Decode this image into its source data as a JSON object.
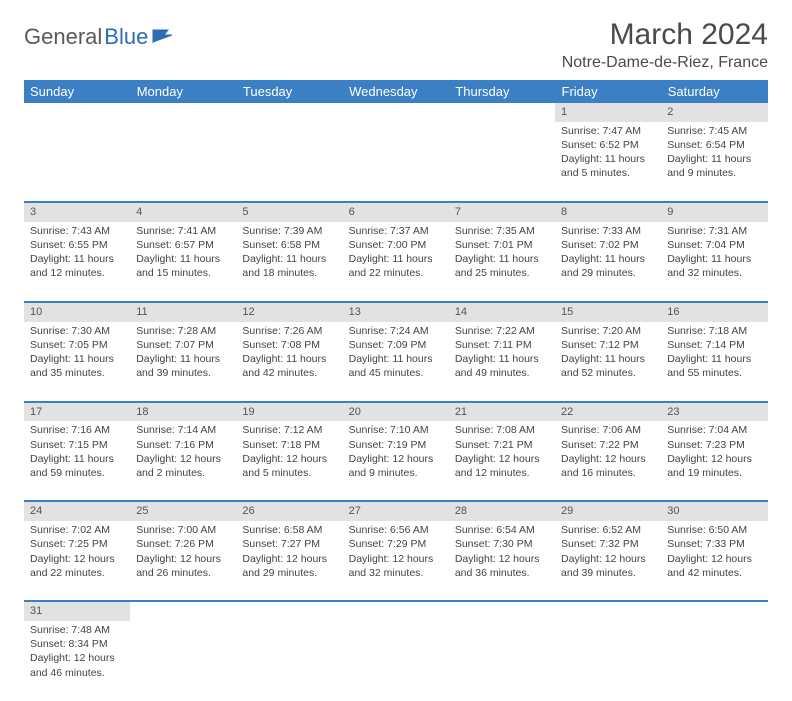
{
  "logo": {
    "text1": "General",
    "text2": "Blue"
  },
  "title": "March 2024",
  "location": "Notre-Dame-de-Riez, France",
  "colors": {
    "header_bg": "#3b7fc4",
    "header_text": "#ffffff",
    "daynum_bg": "#e2e2e2",
    "row_border": "#3b7fc4",
    "body_text": "#444444",
    "logo_gray": "#5a5a5a",
    "logo_blue": "#2a6db5"
  },
  "weekday_labels": [
    "Sunday",
    "Monday",
    "Tuesday",
    "Wednesday",
    "Thursday",
    "Friday",
    "Saturday"
  ],
  "weeks": [
    {
      "nums": [
        "",
        "",
        "",
        "",
        "",
        "1",
        "2"
      ],
      "cells": [
        null,
        null,
        null,
        null,
        null,
        {
          "sunrise": "Sunrise: 7:47 AM",
          "sunset": "Sunset: 6:52 PM",
          "day1": "Daylight: 11 hours",
          "day2": "and 5 minutes."
        },
        {
          "sunrise": "Sunrise: 7:45 AM",
          "sunset": "Sunset: 6:54 PM",
          "day1": "Daylight: 11 hours",
          "day2": "and 9 minutes."
        }
      ]
    },
    {
      "nums": [
        "3",
        "4",
        "5",
        "6",
        "7",
        "8",
        "9"
      ],
      "cells": [
        {
          "sunrise": "Sunrise: 7:43 AM",
          "sunset": "Sunset: 6:55 PM",
          "day1": "Daylight: 11 hours",
          "day2": "and 12 minutes."
        },
        {
          "sunrise": "Sunrise: 7:41 AM",
          "sunset": "Sunset: 6:57 PM",
          "day1": "Daylight: 11 hours",
          "day2": "and 15 minutes."
        },
        {
          "sunrise": "Sunrise: 7:39 AM",
          "sunset": "Sunset: 6:58 PM",
          "day1": "Daylight: 11 hours",
          "day2": "and 18 minutes."
        },
        {
          "sunrise": "Sunrise: 7:37 AM",
          "sunset": "Sunset: 7:00 PM",
          "day1": "Daylight: 11 hours",
          "day2": "and 22 minutes."
        },
        {
          "sunrise": "Sunrise: 7:35 AM",
          "sunset": "Sunset: 7:01 PM",
          "day1": "Daylight: 11 hours",
          "day2": "and 25 minutes."
        },
        {
          "sunrise": "Sunrise: 7:33 AM",
          "sunset": "Sunset: 7:02 PM",
          "day1": "Daylight: 11 hours",
          "day2": "and 29 minutes."
        },
        {
          "sunrise": "Sunrise: 7:31 AM",
          "sunset": "Sunset: 7:04 PM",
          "day1": "Daylight: 11 hours",
          "day2": "and 32 minutes."
        }
      ]
    },
    {
      "nums": [
        "10",
        "11",
        "12",
        "13",
        "14",
        "15",
        "16"
      ],
      "cells": [
        {
          "sunrise": "Sunrise: 7:30 AM",
          "sunset": "Sunset: 7:05 PM",
          "day1": "Daylight: 11 hours",
          "day2": "and 35 minutes."
        },
        {
          "sunrise": "Sunrise: 7:28 AM",
          "sunset": "Sunset: 7:07 PM",
          "day1": "Daylight: 11 hours",
          "day2": "and 39 minutes."
        },
        {
          "sunrise": "Sunrise: 7:26 AM",
          "sunset": "Sunset: 7:08 PM",
          "day1": "Daylight: 11 hours",
          "day2": "and 42 minutes."
        },
        {
          "sunrise": "Sunrise: 7:24 AM",
          "sunset": "Sunset: 7:09 PM",
          "day1": "Daylight: 11 hours",
          "day2": "and 45 minutes."
        },
        {
          "sunrise": "Sunrise: 7:22 AM",
          "sunset": "Sunset: 7:11 PM",
          "day1": "Daylight: 11 hours",
          "day2": "and 49 minutes."
        },
        {
          "sunrise": "Sunrise: 7:20 AM",
          "sunset": "Sunset: 7:12 PM",
          "day1": "Daylight: 11 hours",
          "day2": "and 52 minutes."
        },
        {
          "sunrise": "Sunrise: 7:18 AM",
          "sunset": "Sunset: 7:14 PM",
          "day1": "Daylight: 11 hours",
          "day2": "and 55 minutes."
        }
      ]
    },
    {
      "nums": [
        "17",
        "18",
        "19",
        "20",
        "21",
        "22",
        "23"
      ],
      "cells": [
        {
          "sunrise": "Sunrise: 7:16 AM",
          "sunset": "Sunset: 7:15 PM",
          "day1": "Daylight: 11 hours",
          "day2": "and 59 minutes."
        },
        {
          "sunrise": "Sunrise: 7:14 AM",
          "sunset": "Sunset: 7:16 PM",
          "day1": "Daylight: 12 hours",
          "day2": "and 2 minutes."
        },
        {
          "sunrise": "Sunrise: 7:12 AM",
          "sunset": "Sunset: 7:18 PM",
          "day1": "Daylight: 12 hours",
          "day2": "and 5 minutes."
        },
        {
          "sunrise": "Sunrise: 7:10 AM",
          "sunset": "Sunset: 7:19 PM",
          "day1": "Daylight: 12 hours",
          "day2": "and 9 minutes."
        },
        {
          "sunrise": "Sunrise: 7:08 AM",
          "sunset": "Sunset: 7:21 PM",
          "day1": "Daylight: 12 hours",
          "day2": "and 12 minutes."
        },
        {
          "sunrise": "Sunrise: 7:06 AM",
          "sunset": "Sunset: 7:22 PM",
          "day1": "Daylight: 12 hours",
          "day2": "and 16 minutes."
        },
        {
          "sunrise": "Sunrise: 7:04 AM",
          "sunset": "Sunset: 7:23 PM",
          "day1": "Daylight: 12 hours",
          "day2": "and 19 minutes."
        }
      ]
    },
    {
      "nums": [
        "24",
        "25",
        "26",
        "27",
        "28",
        "29",
        "30"
      ],
      "cells": [
        {
          "sunrise": "Sunrise: 7:02 AM",
          "sunset": "Sunset: 7:25 PM",
          "day1": "Daylight: 12 hours",
          "day2": "and 22 minutes."
        },
        {
          "sunrise": "Sunrise: 7:00 AM",
          "sunset": "Sunset: 7:26 PM",
          "day1": "Daylight: 12 hours",
          "day2": "and 26 minutes."
        },
        {
          "sunrise": "Sunrise: 6:58 AM",
          "sunset": "Sunset: 7:27 PM",
          "day1": "Daylight: 12 hours",
          "day2": "and 29 minutes."
        },
        {
          "sunrise": "Sunrise: 6:56 AM",
          "sunset": "Sunset: 7:29 PM",
          "day1": "Daylight: 12 hours",
          "day2": "and 32 minutes."
        },
        {
          "sunrise": "Sunrise: 6:54 AM",
          "sunset": "Sunset: 7:30 PM",
          "day1": "Daylight: 12 hours",
          "day2": "and 36 minutes."
        },
        {
          "sunrise": "Sunrise: 6:52 AM",
          "sunset": "Sunset: 7:32 PM",
          "day1": "Daylight: 12 hours",
          "day2": "and 39 minutes."
        },
        {
          "sunrise": "Sunrise: 6:50 AM",
          "sunset": "Sunset: 7:33 PM",
          "day1": "Daylight: 12 hours",
          "day2": "and 42 minutes."
        }
      ]
    },
    {
      "nums": [
        "31",
        "",
        "",
        "",
        "",
        "",
        ""
      ],
      "cells": [
        {
          "sunrise": "Sunrise: 7:48 AM",
          "sunset": "Sunset: 8:34 PM",
          "day1": "Daylight: 12 hours",
          "day2": "and 46 minutes."
        },
        null,
        null,
        null,
        null,
        null,
        null
      ]
    }
  ]
}
